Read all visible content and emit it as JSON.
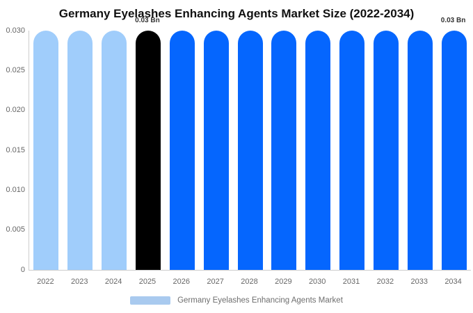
{
  "title": "Germany Eyelashes Enhancing Agents Market Size (2022-2034)",
  "chart_data": {
    "type": "bar",
    "title": "Germany Eyelashes Enhancing Agents Market Size (2022-2034)",
    "categories": [
      "2022",
      "2023",
      "2024",
      "2025",
      "2026",
      "2027",
      "2028",
      "2029",
      "2030",
      "2031",
      "2032",
      "2033",
      "2034"
    ],
    "values": [
      0.03,
      0.03,
      0.03,
      0.03,
      0.03,
      0.03,
      0.03,
      0.03,
      0.03,
      0.03,
      0.03,
      0.03,
      0.03
    ],
    "unit": "Bn",
    "xlabel": "",
    "ylabel": "",
    "ylim": [
      0,
      0.03
    ],
    "yticks": [
      "0.030",
      "0.025",
      "0.020",
      "0.015",
      "0.010",
      "0.005",
      "0"
    ],
    "grid": false,
    "legend_position": "bottom",
    "bar_colors": [
      "#A0CDFB",
      "#A0CDFB",
      "#A0CDFB",
      "#000000",
      "#0566FE",
      "#0566FE",
      "#0566FE",
      "#0566FE",
      "#0566FE",
      "#0566FE",
      "#0566FE",
      "#0566FE",
      "#0566FE"
    ],
    "annotations": [
      {
        "category": "2025",
        "label": "0.03 Bn"
      },
      {
        "category": "2034",
        "label": "0.03 Bn"
      }
    ]
  },
  "legend": {
    "label": "Germany Eyelashes Enhancing Agents Market",
    "swatch_color": "#A9CAEF"
  },
  "colors": {
    "historical_bar": "#A0CDFB",
    "base_year_bar": "#000000",
    "forecast_bar": "#0566FE",
    "axis_line": "#cccccc",
    "tick_text": "#666666",
    "title_text": "#111111",
    "annotation_text": "#333333"
  }
}
